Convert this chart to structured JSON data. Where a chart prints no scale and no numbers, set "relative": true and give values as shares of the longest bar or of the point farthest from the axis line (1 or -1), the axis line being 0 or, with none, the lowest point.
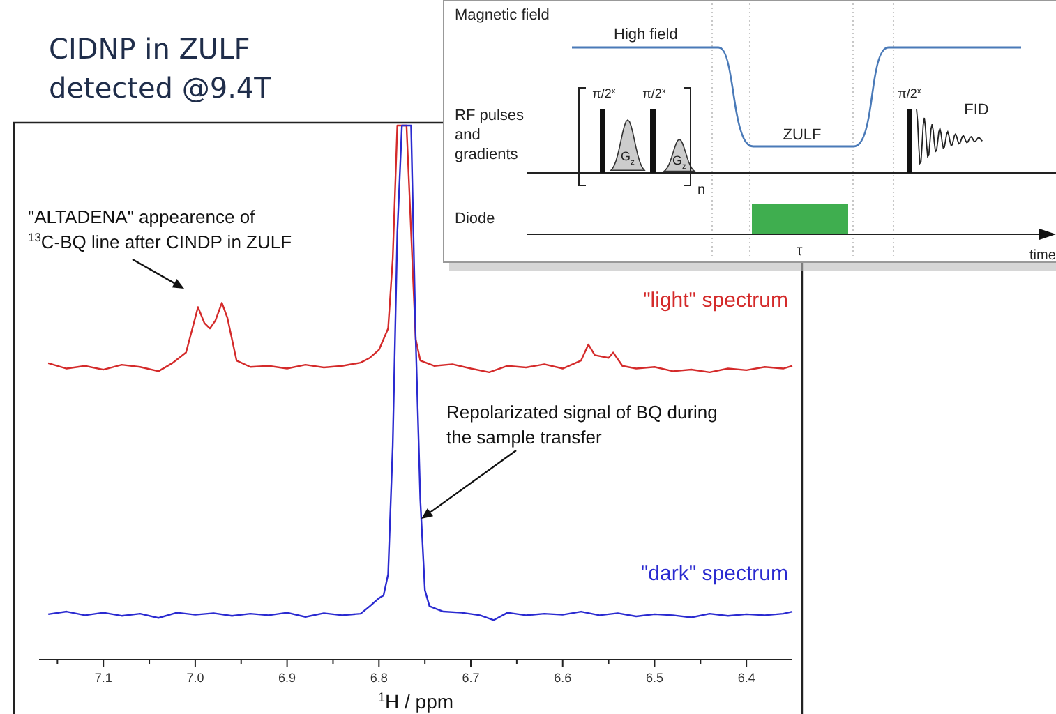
{
  "chart_data": {
    "type": "line",
    "title": "CIDNP in ZULF detected @9.4T",
    "xlabel": "$^{1}$H / ppm",
    "relative": true,
    "xlim": [
      7.17,
      6.35
    ],
    "xticks": [
      {
        "value": 7.15,
        "label": null
      },
      7.1,
      {
        "value": 7.05,
        "label": null
      },
      {
        "value": 7.0,
        "label": "7.0"
      },
      {
        "value": 6.95,
        "label": null
      },
      6.9,
      {
        "value": 6.85,
        "label": null
      },
      6.8,
      {
        "value": 6.75,
        "label": null
      },
      6.7,
      {
        "value": 6.65,
        "label": null
      },
      6.6,
      {
        "value": 6.55,
        "label": null
      },
      6.5,
      {
        "value": 6.45,
        "label": null
      },
      6.4
    ],
    "series": [
      {
        "name": "\"light\" spectrum",
        "color": "#d42a2a",
        "x": [
          7.16,
          7.14,
          7.12,
          7.1,
          7.08,
          7.06,
          7.04,
          7.025,
          7.01,
          7.0,
          6.997,
          6.99,
          6.984,
          6.978,
          6.971,
          6.965,
          6.955,
          6.94,
          6.92,
          6.9,
          6.88,
          6.86,
          6.84,
          6.82,
          6.81,
          6.8,
          6.79,
          6.785,
          6.78,
          6.775,
          6.77,
          6.765,
          6.76,
          6.755,
          6.74,
          6.72,
          6.7,
          6.68,
          6.66,
          6.64,
          6.62,
          6.6,
          6.58,
          6.572,
          6.565,
          6.55,
          6.545,
          6.535,
          6.52,
          6.5,
          6.48,
          6.46,
          6.44,
          6.42,
          6.4,
          6.38,
          6.36,
          6.35
        ],
        "values": [
          0.555,
          0.545,
          0.55,
          0.543,
          0.552,
          0.548,
          0.54,
          0.555,
          0.575,
          0.64,
          0.66,
          0.63,
          0.62,
          0.635,
          0.668,
          0.64,
          0.56,
          0.548,
          0.55,
          0.545,
          0.552,
          0.547,
          0.55,
          0.556,
          0.565,
          0.58,
          0.62,
          0.75,
          1.0,
          1.0,
          1.0,
          0.8,
          0.6,
          0.56,
          0.55,
          0.553,
          0.545,
          0.538,
          0.55,
          0.547,
          0.553,
          0.545,
          0.56,
          0.59,
          0.57,
          0.565,
          0.575,
          0.55,
          0.545,
          0.548,
          0.54,
          0.543,
          0.538,
          0.545,
          0.542,
          0.548,
          0.545,
          0.55
        ]
      },
      {
        "name": "\"dark\" spectrum",
        "color": "#2a2ad0",
        "x": [
          7.16,
          7.14,
          7.12,
          7.1,
          7.08,
          7.06,
          7.04,
          7.02,
          7.0,
          6.98,
          6.96,
          6.94,
          6.92,
          6.9,
          6.88,
          6.86,
          6.84,
          6.82,
          6.81,
          6.8,
          6.795,
          6.79,
          6.785,
          6.78,
          6.775,
          6.765,
          6.76,
          6.755,
          6.75,
          6.745,
          6.73,
          6.71,
          6.69,
          6.675,
          6.66,
          6.64,
          6.62,
          6.6,
          6.58,
          6.56,
          6.54,
          6.52,
          6.5,
          6.48,
          6.46,
          6.44,
          6.42,
          6.4,
          6.38,
          6.36,
          6.35
        ],
        "values": [
          0.085,
          0.09,
          0.083,
          0.088,
          0.082,
          0.086,
          0.078,
          0.088,
          0.084,
          0.087,
          0.082,
          0.086,
          0.083,
          0.088,
          0.08,
          0.087,
          0.083,
          0.086,
          0.1,
          0.115,
          0.12,
          0.16,
          0.4,
          0.8,
          1.0,
          1.0,
          0.6,
          0.3,
          0.13,
          0.1,
          0.09,
          0.088,
          0.083,
          0.074,
          0.088,
          0.083,
          0.086,
          0.084,
          0.09,
          0.083,
          0.087,
          0.081,
          0.085,
          0.083,
          0.079,
          0.086,
          0.082,
          0.085,
          0.083,
          0.086,
          0.09
        ]
      }
    ],
    "annotations": [
      "\"ALTADENA\" appearence of $^{13}$C-BQ line after CINDP in ZULF",
      "Repolarizated signal of BQ during the sample transfer",
      "Magnetic field",
      "High field",
      "RF pulses and gradients",
      "Diode",
      "ZULF",
      "FID",
      "τ",
      "time",
      "π/2$^{x}$",
      "π/2$^{x}$",
      "π/2$^{x}$",
      "G$_{z}$",
      "G$_{z}$",
      "n"
    ]
  }
}
